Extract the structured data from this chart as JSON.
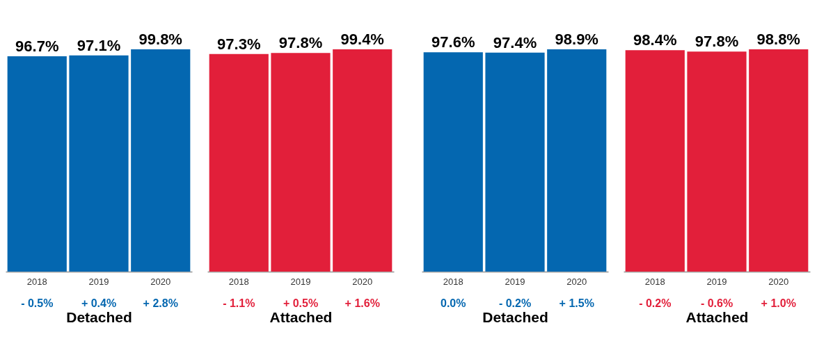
{
  "chart_data": [
    {
      "type": "bar",
      "xlabel": "Detached",
      "categories": [
        "2018",
        "2019",
        "2020"
      ],
      "values": [
        96.7,
        97.1,
        99.8
      ],
      "color": "#0467b0",
      "value_labels": [
        "96.7%",
        "97.1%",
        "99.8%"
      ],
      "annotations": [
        "- 0.5%",
        "+ 0.4%",
        "+ 2.8%"
      ]
    },
    {
      "type": "bar",
      "xlabel": "Attached",
      "categories": [
        "2018",
        "2019",
        "2020"
      ],
      "values": [
        97.3,
        97.8,
        99.4
      ],
      "color": "#e21f3a",
      "value_labels": [
        "97.3%",
        "97.8%",
        "99.4%"
      ],
      "annotations": [
        "- 1.1%",
        "+ 0.5%",
        "+ 1.6%"
      ]
    },
    {
      "type": "bar",
      "xlabel": "Detached",
      "categories": [
        "2018",
        "2019",
        "2020"
      ],
      "values": [
        97.6,
        97.4,
        98.9
      ],
      "color": "#0467b0",
      "value_labels": [
        "97.6%",
        "97.4%",
        "98.9%"
      ],
      "annotations": [
        "0.0%",
        "- 0.2%",
        "+ 1.5%"
      ]
    },
    {
      "type": "bar",
      "xlabel": "Attached",
      "categories": [
        "2018",
        "2019",
        "2020"
      ],
      "values": [
        98.4,
        97.8,
        98.8
      ],
      "color": "#e21f3a",
      "value_labels": [
        "98.4%",
        "97.8%",
        "98.8%"
      ],
      "annotations": [
        "- 0.2%",
        "- 0.6%",
        "+ 1.0%"
      ]
    }
  ]
}
